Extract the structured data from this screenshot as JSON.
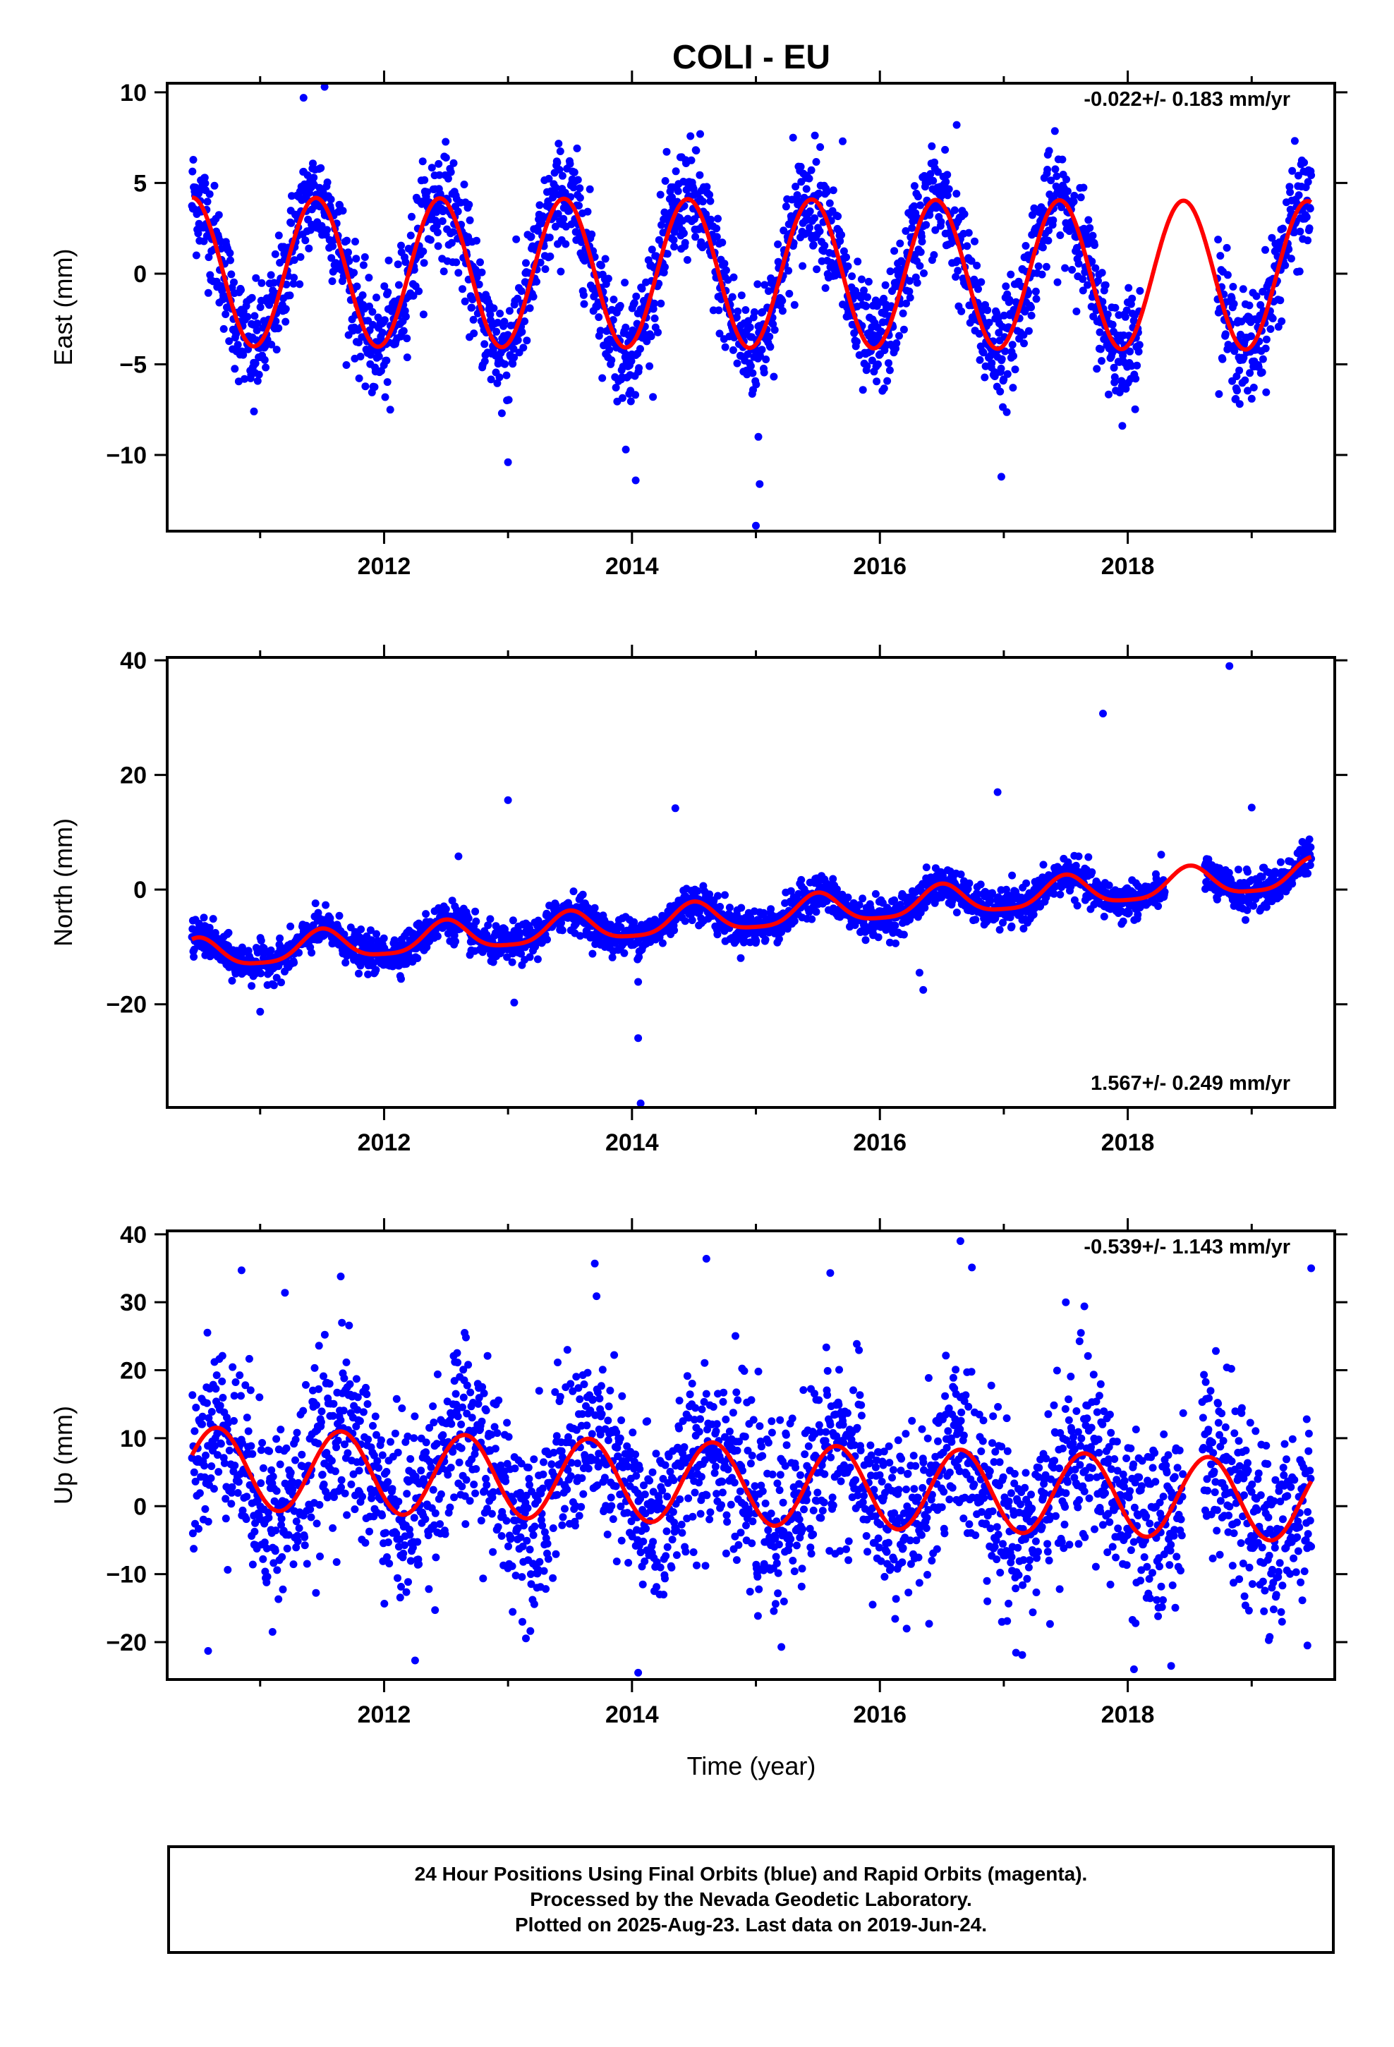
{
  "title": "COLI - EU",
  "xlabel": "Time (year)",
  "colors": {
    "points": "#0000ff",
    "model": "#ff0000",
    "axes": "#000000"
  },
  "footer": {
    "line1": "24 Hour Positions Using Final Orbits (blue) and Rapid Orbits (magenta).",
    "line2": "Processed by the Nevada Geodetic Laboratory.",
    "line3": "Plotted on 2025-Aug-23. Last data on 2019-Jun-24."
  },
  "chart_data": [
    {
      "type": "scatter",
      "component": "east",
      "ylabel": "East (mm)",
      "rate_text": "-0.022+/- 0.183 mm/yr",
      "xlim": [
        2010.25,
        2019.67
      ],
      "ylim": [
        -14.2,
        10.5
      ],
      "xticks": [
        2012,
        2014,
        2016,
        2018
      ],
      "yticks": [
        -10,
        -5,
        0,
        5,
        10
      ],
      "data_span": [
        2010.45,
        2019.48
      ],
      "model": {
        "offset": 0.0,
        "trend_mm_per_yr": -0.022,
        "annual_amplitude": 4.1,
        "annual_peak_phase": 0.45,
        "semiannual_amplitude": 0.0
      },
      "scatter_sd": 1.5,
      "outliers": [
        [
          2011.35,
          9.7
        ],
        [
          2011.52,
          10.3
        ],
        [
          2012.05,
          -7.5
        ],
        [
          2012.95,
          -7.7
        ],
        [
          2013.0,
          -10.4
        ],
        [
          2013.95,
          -9.7
        ],
        [
          2014.03,
          -11.4
        ],
        [
          2015.0,
          -13.9
        ],
        [
          2015.03,
          -11.6
        ],
        [
          2015.02,
          -9.0
        ],
        [
          2015.3,
          7.5
        ],
        [
          2015.7,
          7.3
        ],
        [
          2016.62,
          8.2
        ],
        [
          2016.98,
          -11.2
        ],
        [
          2014.55,
          7.7
        ],
        [
          2010.95,
          -7.6
        ],
        [
          2019.0,
          -6.9
        ]
      ],
      "gap": [
        2018.1,
        2018.72
      ]
    },
    {
      "type": "scatter",
      "component": "north",
      "ylabel": "North (mm)",
      "rate_text": "1.567+/- 0.249 mm/yr",
      "xlim": [
        2010.25,
        2019.67
      ],
      "ylim": [
        -38,
        40.5
      ],
      "xticks": [
        2012,
        2014,
        2016,
        2018
      ],
      "yticks": [
        -20,
        0,
        20,
        40
      ],
      "data_span": [
        2010.45,
        2019.48
      ],
      "model": {
        "offset": -4.5,
        "trend_mm_per_yr": 1.567,
        "annual_amplitude": 2.6,
        "annual_peak_phase": 0.5,
        "semiannual_amplitude": 0.6
      },
      "scatter_sd": 1.6,
      "outliers": [
        [
          2011.0,
          -21.3
        ],
        [
          2012.6,
          5.8
        ],
        [
          2013.0,
          15.6
        ],
        [
          2013.05,
          -19.7
        ],
        [
          2014.05,
          -25.9
        ],
        [
          2014.07,
          -37.3
        ],
        [
          2014.05,
          -16.1
        ],
        [
          2014.35,
          14.2
        ],
        [
          2016.35,
          -17.5
        ],
        [
          2016.32,
          -14.5
        ],
        [
          2016.95,
          17.0
        ],
        [
          2017.8,
          30.7
        ],
        [
          2018.82,
          39.0
        ],
        [
          2018.95,
          -5.3
        ],
        [
          2019.0,
          14.3
        ],
        [
          2017.95,
          -6.0
        ]
      ],
      "gap": [
        2018.3,
        2018.62
      ]
    },
    {
      "type": "scatter",
      "component": "up",
      "ylabel": "Up (mm)",
      "rate_text": "-0.539+/- 1.143 mm/yr",
      "xlim": [
        2010.25,
        2019.67
      ],
      "ylim": [
        -25.5,
        40.5
      ],
      "xticks": [
        2012,
        2014,
        2016,
        2018
      ],
      "yticks": [
        -20,
        -10,
        0,
        10,
        20,
        30,
        40
      ],
      "data_span": [
        2010.45,
        2019.48
      ],
      "model": {
        "offset": 3.2,
        "trend_mm_per_yr": -0.539,
        "annual_amplitude": 6.0,
        "annual_peak_phase": 0.65,
        "semiannual_amplitude": 0.0
      },
      "scatter_sd": 6.5,
      "outliers": [
        [
          2010.58,
          -21.3
        ],
        [
          2010.85,
          34.7
        ],
        [
          2011.1,
          -18.5
        ],
        [
          2011.2,
          31.4
        ],
        [
          2011.65,
          33.8
        ],
        [
          2012.25,
          -22.7
        ],
        [
          2013.7,
          35.7
        ],
        [
          2014.05,
          -24.5
        ],
        [
          2014.6,
          36.4
        ],
        [
          2015.6,
          34.3
        ],
        [
          2016.65,
          39.0
        ],
        [
          2017.5,
          30.0
        ],
        [
          2017.65,
          29.4
        ],
        [
          2018.05,
          -24.0
        ],
        [
          2018.35,
          -23.5
        ],
        [
          2019.48,
          35.0
        ],
        [
          2019.45,
          -20.5
        ]
      ],
      "gap": [
        2018.45,
        2018.6
      ]
    }
  ]
}
